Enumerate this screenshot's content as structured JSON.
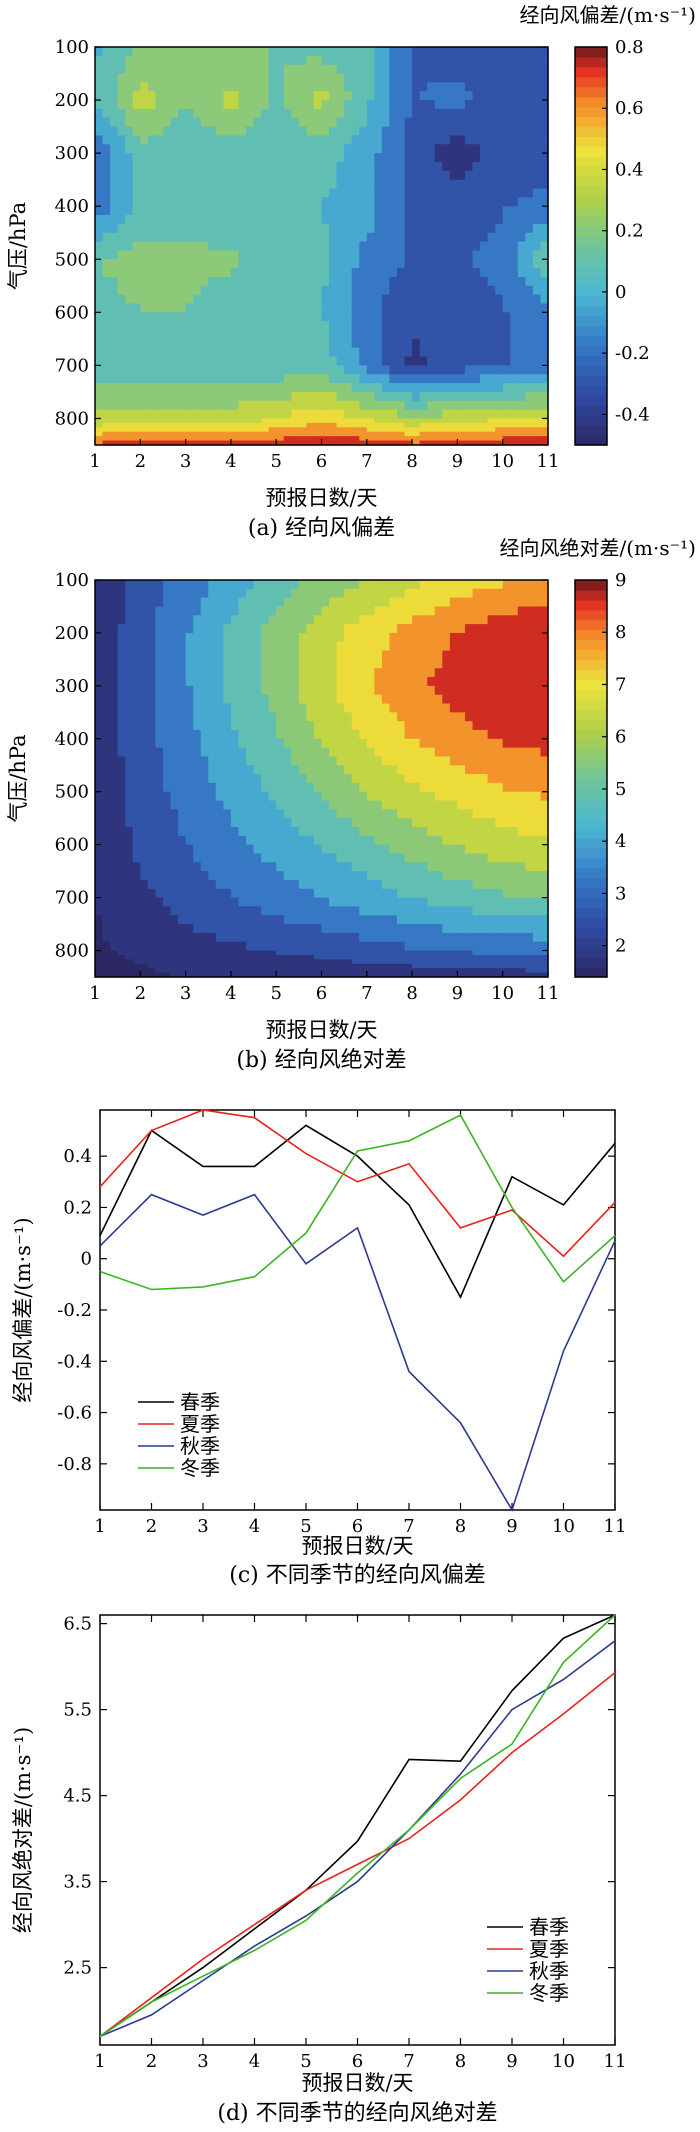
{
  "chart_data": [
    {
      "type": "heatmap",
      "caption": "(a) 经向风偏差",
      "colorbar_title": "经向风偏差/(m·s⁻¹)",
      "xlabel": "预报日数/天",
      "ylabel": "气压/hPa",
      "x": [
        1,
        2,
        3,
        4,
        5,
        6,
        7,
        8,
        9,
        10,
        11
      ],
      "y": [
        100,
        200,
        300,
        400,
        500,
        600,
        700,
        800,
        850
      ],
      "y_ticks": [
        100,
        200,
        300,
        400,
        500,
        600,
        700,
        800
      ],
      "xlim": [
        1,
        11
      ],
      "ylim": [
        850,
        100
      ],
      "colorbar_ticks": [
        -0.4,
        -0.2,
        0,
        0.2,
        0.4,
        0.6,
        0.8
      ],
      "colorbar_tick_labels": [
        "-0.4",
        "-0.2",
        "0",
        "0.2",
        "0.4",
        "0.6",
        "0.8"
      ],
      "clim": [
        -0.5,
        0.8
      ],
      "z": [
        [
          0.0,
          0.15,
          0.15,
          0.15,
          0.15,
          0.1,
          0.05,
          -0.25,
          -0.3,
          -0.25,
          -0.3
        ],
        [
          0.02,
          0.35,
          0.15,
          0.32,
          0.12,
          0.32,
          0.05,
          -0.25,
          -0.2,
          -0.3,
          -0.3
        ],
        [
          -0.25,
          0.1,
          0.05,
          0.08,
          0.05,
          0.08,
          -0.05,
          -0.3,
          -0.45,
          -0.3,
          -0.3
        ],
        [
          -0.2,
          0.05,
          0.05,
          0.02,
          0.02,
          0.02,
          -0.05,
          -0.3,
          -0.3,
          -0.25,
          -0.2
        ],
        [
          0.15,
          0.2,
          0.2,
          0.18,
          0.05,
          0.05,
          -0.15,
          -0.25,
          -0.25,
          -0.2,
          0.15
        ],
        [
          0.1,
          0.15,
          0.15,
          0.05,
          0.02,
          0.02,
          -0.2,
          -0.35,
          -0.3,
          -0.25,
          -0.15
        ],
        [
          0.05,
          0.05,
          0.05,
          0.05,
          0.05,
          0.1,
          -0.15,
          -0.4,
          -0.3,
          -0.25,
          -0.15
        ],
        [
          0.3,
          0.35,
          0.35,
          0.35,
          0.4,
          0.5,
          0.4,
          0.3,
          0.35,
          0.4,
          0.4
        ],
        [
          0.7,
          0.72,
          0.74,
          0.72,
          0.75,
          0.8,
          0.74,
          0.7,
          0.72,
          0.76,
          0.78
        ]
      ]
    },
    {
      "type": "heatmap",
      "caption": "(b) 经向风绝对差",
      "colorbar_title": "经向风绝对差/(m·s⁻¹)",
      "xlabel": "预报日数/天",
      "ylabel": "气压/hPa",
      "x": [
        1,
        2,
        3,
        4,
        5,
        6,
        7,
        8,
        9,
        10,
        11
      ],
      "y": [
        100,
        200,
        300,
        400,
        500,
        600,
        700,
        800,
        850
      ],
      "y_ticks": [
        100,
        200,
        300,
        400,
        500,
        600,
        700,
        800
      ],
      "xlim": [
        1,
        11
      ],
      "ylim": [
        850,
        100
      ],
      "colorbar_ticks": [
        2,
        3,
        4,
        5,
        6,
        7,
        8,
        9
      ],
      "colorbar_tick_labels": [
        "2",
        "3",
        "4",
        "5",
        "6",
        "7",
        "8",
        "9"
      ],
      "clim": [
        1.4,
        9
      ],
      "z": [
        [
          1.5,
          2.5,
          3.2,
          4.0,
          4.8,
          5.4,
          6.0,
          6.5,
          7.0,
          7.4,
          7.6
        ],
        [
          1.6,
          2.6,
          3.6,
          4.6,
          5.5,
          6.4,
          7.1,
          7.8,
          8.3,
          8.7,
          8.9
        ],
        [
          1.6,
          2.7,
          3.6,
          4.6,
          5.5,
          6.5,
          7.4,
          8.1,
          8.5,
          8.8,
          9.0
        ],
        [
          1.6,
          2.6,
          3.4,
          4.3,
          5.1,
          6.0,
          6.8,
          7.5,
          8.0,
          8.3,
          8.5
        ],
        [
          1.6,
          2.5,
          3.2,
          3.9,
          4.6,
          5.3,
          6.0,
          6.6,
          7.0,
          7.4,
          7.6
        ],
        [
          1.5,
          2.3,
          2.9,
          3.5,
          4.0,
          4.5,
          5.0,
          5.5,
          6.0,
          6.4,
          6.6
        ],
        [
          1.4,
          2.0,
          2.5,
          2.9,
          3.3,
          3.7,
          4.1,
          4.5,
          4.8,
          5.1,
          5.3
        ],
        [
          1.3,
          1.5,
          1.8,
          2.0,
          2.2,
          2.4,
          2.6,
          2.8,
          3.0,
          3.1,
          3.2
        ],
        [
          1.2,
          1.3,
          1.4,
          1.5,
          1.55,
          1.6,
          1.65,
          1.7,
          1.75,
          1.8,
          1.85
        ]
      ]
    },
    {
      "type": "line",
      "caption": "(c) 不同季节的经向风偏差",
      "xlabel": "预报日数/天",
      "ylabel": "经向风偏差/(m·s⁻¹)",
      "x": [
        1,
        2,
        3,
        4,
        5,
        6,
        7,
        8,
        9,
        10,
        11
      ],
      "xlim": [
        1,
        11
      ],
      "ylim": [
        -0.98,
        0.58
      ],
      "y_ticks": [
        -0.8,
        -0.6,
        -0.4,
        -0.2,
        0,
        0.2,
        0.4
      ],
      "y_tick_labels": [
        "-0.8",
        "-0.6",
        "-0.4",
        "-0.2",
        "0",
        "0.2",
        "0.4"
      ],
      "legend": "left-lower",
      "series": [
        {
          "name": "春季",
          "color": "#000000",
          "values": [
            0.09,
            0.5,
            0.36,
            0.36,
            0.52,
            0.4,
            0.21,
            -0.15,
            0.32,
            0.21,
            0.45
          ]
        },
        {
          "name": "夏季",
          "color": "#e8231e",
          "values": [
            0.28,
            0.5,
            0.58,
            0.55,
            0.41,
            0.3,
            0.37,
            0.12,
            0.19,
            0.01,
            0.22
          ]
        },
        {
          "name": "秋季",
          "color": "#2b3a8f",
          "values": [
            0.05,
            0.25,
            0.17,
            0.25,
            -0.02,
            0.12,
            -0.44,
            -0.64,
            -0.98,
            -0.36,
            0.07
          ]
        },
        {
          "name": "冬季",
          "color": "#3cb424",
          "values": [
            -0.05,
            -0.12,
            -0.11,
            -0.07,
            0.1,
            0.42,
            0.46,
            0.56,
            0.2,
            -0.09,
            0.09
          ]
        }
      ]
    },
    {
      "type": "line",
      "caption": "(d) 不同季节的经向风绝对差",
      "xlabel": "预报日数/天",
      "ylabel": "经向风绝对差/(m·s⁻¹)",
      "x": [
        1,
        2,
        3,
        4,
        5,
        6,
        7,
        8,
        9,
        10,
        11
      ],
      "xlim": [
        1,
        11
      ],
      "ylim": [
        1.6,
        6.6
      ],
      "y_ticks": [
        2.5,
        3.5,
        4.5,
        5.5,
        6.5
      ],
      "y_tick_labels": [
        "2.5",
        "3.5",
        "4.5",
        "5.5",
        "6.5"
      ],
      "legend": "lower-right",
      "series": [
        {
          "name": "春季",
          "color": "#000000",
          "values": [
            1.7,
            2.1,
            2.5,
            2.95,
            3.4,
            3.97,
            4.92,
            4.9,
            5.72,
            6.33,
            6.6
          ]
        },
        {
          "name": "夏季",
          "color": "#e8231e",
          "values": [
            1.7,
            2.15,
            2.6,
            3.0,
            3.4,
            3.7,
            4.0,
            4.45,
            5.0,
            5.45,
            5.93
          ]
        },
        {
          "name": "秋季",
          "color": "#2b3a8f",
          "values": [
            1.7,
            1.95,
            2.35,
            2.75,
            3.1,
            3.5,
            4.1,
            4.75,
            5.5,
            5.85,
            6.3
          ]
        },
        {
          "name": "冬季",
          "color": "#3cb424",
          "values": [
            1.7,
            2.1,
            2.4,
            2.7,
            3.05,
            3.6,
            4.1,
            4.7,
            5.1,
            6.05,
            6.6
          ]
        }
      ]
    }
  ]
}
